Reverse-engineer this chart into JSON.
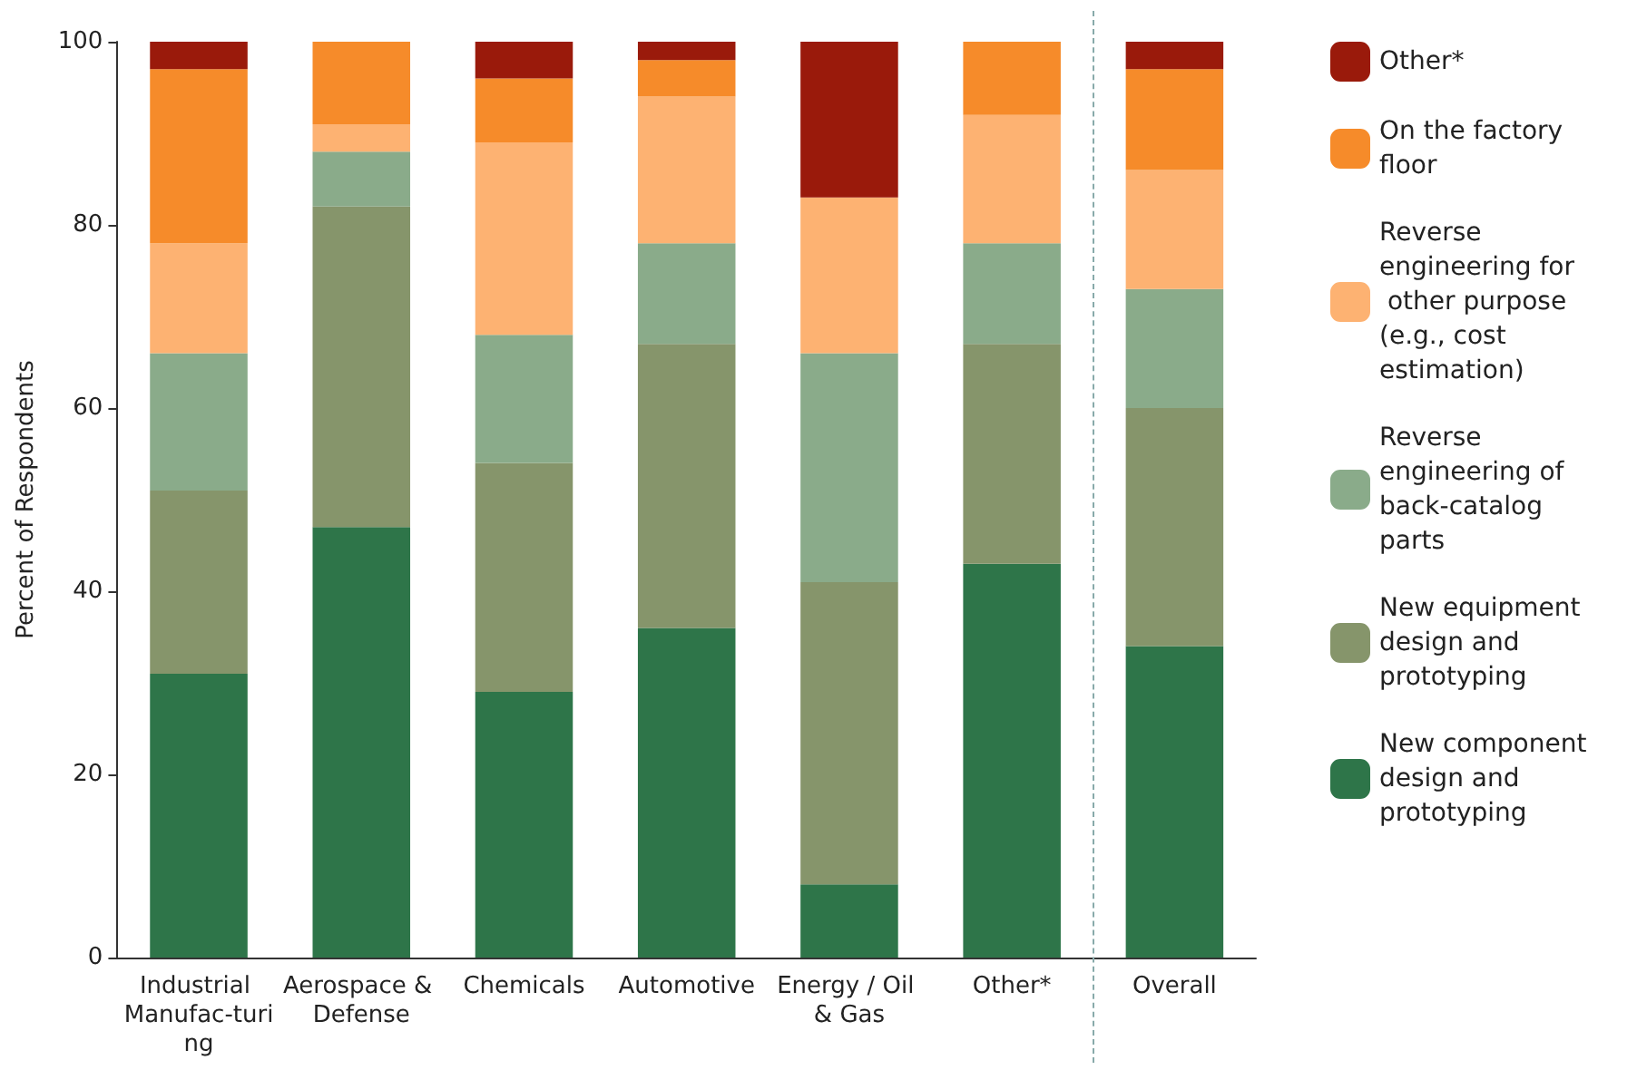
{
  "chart_data": {
    "type": "bar",
    "stacked": true,
    "ylabel": "Percent of Respondents",
    "categories": [
      "Industrial Manufac-turing",
      "Aerospace & Defense",
      "Chemicals",
      "Automotive",
      "Energy / Oil & Gas",
      "Other*",
      "Overall"
    ],
    "series": [
      {
        "name": "New component design and prototyping",
        "color": "#2e7549",
        "values": [
          31,
          47,
          29,
          36,
          8,
          43,
          34
        ]
      },
      {
        "name": "New equipment design and prototyping",
        "color": "#86956b",
        "values": [
          20,
          35,
          25,
          31,
          33,
          24,
          26
        ]
      },
      {
        "name": "Reverse engineering of back-catalog parts",
        "color": "#8aab8a",
        "values": [
          15,
          6,
          14,
          11,
          25,
          11,
          13
        ]
      },
      {
        "name": "Reverse engineering for other purpose (e.g., cost estimation)",
        "color": "#fdb272",
        "values": [
          12,
          3,
          21,
          16,
          17,
          14,
          13
        ]
      },
      {
        "name": "On the factory floor",
        "color": "#f68b2a",
        "values": [
          19,
          9,
          7,
          4,
          0,
          8,
          11
        ]
      },
      {
        "name": "Other*",
        "color": "#9a1a0b",
        "values": [
          3,
          0,
          4,
          2,
          17,
          0,
          3
        ]
      }
    ],
    "ylim": [
      0,
      100
    ],
    "yticks": [
      0,
      20,
      40,
      60,
      80,
      100
    ],
    "grid": false,
    "legend": "right"
  }
}
